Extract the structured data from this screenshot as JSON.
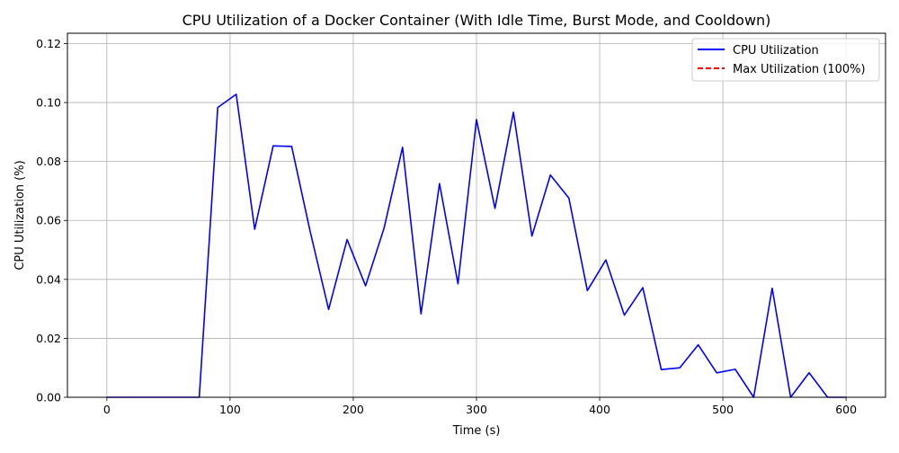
{
  "chart_data": {
    "type": "line",
    "title": "CPU Utilization of a Docker Container (With Idle Time, Burst Mode, and Cooldown)",
    "xlabel": "Time (s)",
    "ylabel": "CPU Utilization (%)",
    "xlim": [
      -32,
      632
    ],
    "ylim": [
      0,
      0.1235
    ],
    "xticks": [
      0,
      100,
      200,
      300,
      400,
      500,
      600
    ],
    "xtick_labels": [
      "0",
      "100",
      "200",
      "300",
      "400",
      "500",
      "600"
    ],
    "yticks": [
      0.0,
      0.02,
      0.04,
      0.06,
      0.08,
      0.1,
      0.12
    ],
    "ytick_labels": [
      "0.00",
      "0.02",
      "0.04",
      "0.06",
      "0.08",
      "0.10",
      "0.12"
    ],
    "grid": true,
    "legend_position": "upper right",
    "series": [
      {
        "name": "CPU Utilization",
        "color": "#0000ff",
        "style": "solid",
        "x": [
          0,
          15,
          30,
          45,
          60,
          75,
          90,
          105,
          120,
          135,
          150,
          165,
          180,
          195,
          210,
          225,
          240,
          255,
          270,
          285,
          300,
          315,
          330,
          345,
          360,
          375,
          390,
          405,
          420,
          435,
          450,
          465,
          480,
          495,
          510,
          525,
          540,
          555,
          570,
          585,
          600
        ],
        "y": [
          0.0,
          0.0,
          0.0,
          0.0,
          0.0,
          0.0,
          0.0983,
          0.1028,
          0.057,
          0.0853,
          0.0851,
          0.0563,
          0.0298,
          0.0535,
          0.0378,
          0.0574,
          0.0848,
          0.0283,
          0.0725,
          0.0385,
          0.0942,
          0.0641,
          0.0967,
          0.0547,
          0.0754,
          0.0676,
          0.0362,
          0.0466,
          0.0279,
          0.0372,
          0.0094,
          0.01,
          0.0178,
          0.0083,
          0.0095,
          0.0,
          0.037,
          0.0,
          0.0083,
          0.0,
          0.0
        ]
      },
      {
        "name": "Max Utilization (100%)",
        "color": "#ff0000",
        "style": "dashed",
        "y_constant": 1.0
      }
    ]
  }
}
